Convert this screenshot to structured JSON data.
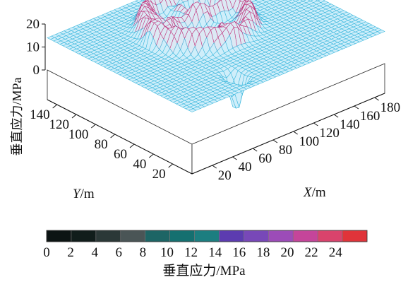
{
  "chart_data": {
    "type": "surface3d",
    "title": "",
    "zlabel": "垂直应力/MPa",
    "xlabel_italic": "X",
    "xlabel_unit": "/m",
    "ylabel_italic": "Y",
    "ylabel_unit": "/m",
    "z_ticks": [
      "0",
      "10",
      "20"
    ],
    "x_ticks": [
      "20",
      "40",
      "60",
      "80",
      "100",
      "120",
      "140",
      "160",
      "180"
    ],
    "y_ticks": [
      "20",
      "40",
      "60",
      "80",
      "100",
      "120",
      "140"
    ],
    "xlim": [
      0,
      190
    ],
    "ylim": [
      0,
      150
    ],
    "zlim": [
      0,
      20
    ],
    "baseline_stress": 14,
    "surface_color": "#37b6dc",
    "peak_color": "#c0307a",
    "colorbar": {
      "label": "垂直应力/MPa",
      "tick_labels": [
        "0",
        "2",
        "4",
        "6",
        "8",
        "10",
        "12",
        "14",
        "16",
        "18",
        "20",
        "22",
        "24"
      ],
      "colors": [
        "#0c1413",
        "#111d1b",
        "#2b3837",
        "#4a5556",
        "#1d6565",
        "#157070",
        "#1c7e80",
        "#5c3cb0",
        "#7848b8",
        "#9c4cb8",
        "#c5459a",
        "#d9436c",
        "#e0343a"
      ]
    }
  }
}
